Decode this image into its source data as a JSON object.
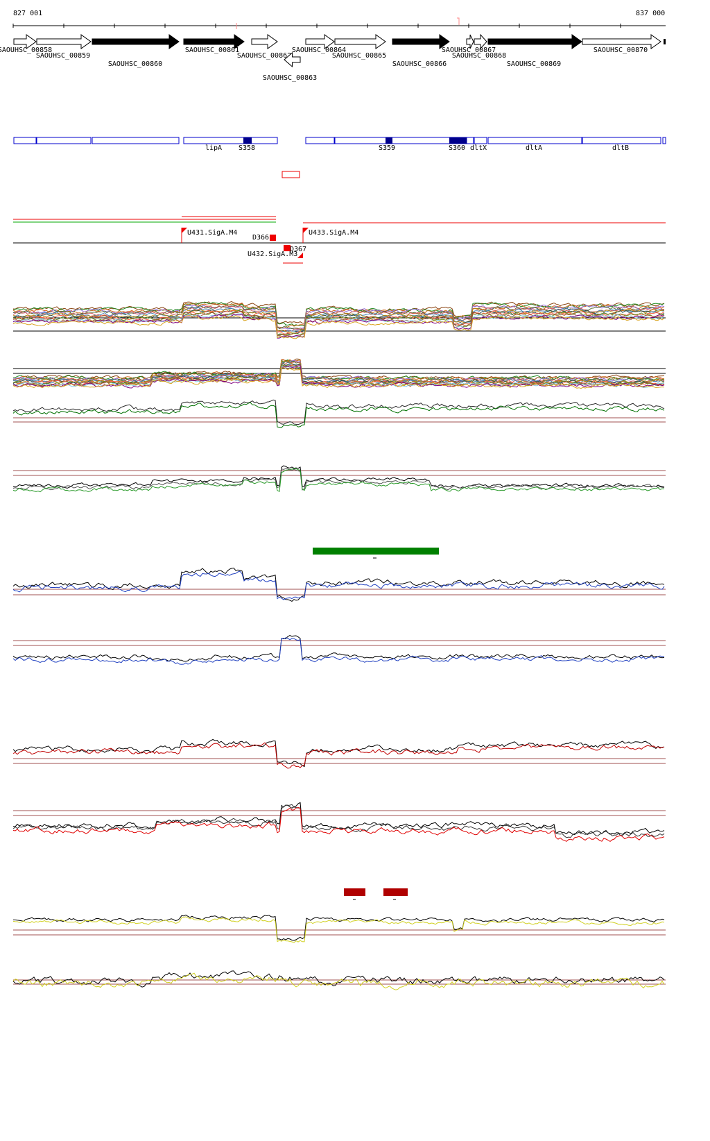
{
  "ruler": {
    "start": "827 001",
    "end": "837 000"
  },
  "genes": [
    "SAOUHSC_00858",
    "SAOUHSC_00859",
    "SAOUHSC_00860",
    "SAOUHSC_00861",
    "SAOUHSC_00862",
    "SAOUHSC_00863",
    "SAOUHSC_00864",
    "SAOUHSC_00865",
    "SAOUHSC_00866",
    "SAOUHSC_00867",
    "SAOUHSC_00868",
    "SAOUHSC_00869",
    "SAOUHSC_00870"
  ],
  "features": [
    "lipA",
    "S358",
    "S359",
    "S360",
    "dltX",
    "dltA",
    "dltB"
  ],
  "promoters": [
    "U431.SigA.M4",
    "D366",
    "D367",
    "U432.SigA.M3",
    "U433.SigA.M4"
  ]
}
